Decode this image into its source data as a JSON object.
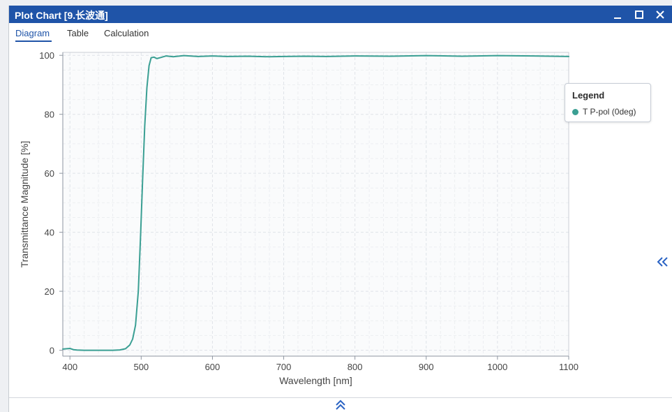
{
  "window": {
    "title": "Plot Chart [9.长波通]"
  },
  "tabs": [
    {
      "label": "Diagram",
      "active": true
    },
    {
      "label": "Table",
      "active": false
    },
    {
      "label": "Calculation",
      "active": false
    }
  ],
  "chart_data": {
    "type": "line",
    "title": "",
    "xlabel": "Wavelength [nm]",
    "ylabel": "Transmittance Magnitude [%]",
    "xlim": [
      390,
      1100
    ],
    "ylim": [
      -2,
      101
    ],
    "x_ticks": [
      400,
      500,
      600,
      700,
      800,
      900,
      1000,
      1100
    ],
    "y_ticks": [
      0,
      20,
      40,
      60,
      80,
      100
    ],
    "grid": true,
    "legend": {
      "title": "Legend",
      "placement": "top-right"
    },
    "series": [
      {
        "name": "T P-pol (0deg)",
        "color": "#3a9f93",
        "x": [
          390,
          400,
          405,
          410,
          420,
          440,
          460,
          470,
          478,
          484,
          488,
          492,
          496,
          499,
          502,
          505,
          508,
          511,
          514,
          518,
          522,
          528,
          535,
          545,
          560,
          580,
          600,
          620,
          650,
          680,
          700,
          730,
          760,
          800,
          850,
          900,
          950,
          1000,
          1050,
          1100
        ],
        "y": [
          0.4,
          0.6,
          0.2,
          0.05,
          0.0,
          0.0,
          0.0,
          0.1,
          0.5,
          1.8,
          3.8,
          8.5,
          20.0,
          38.0,
          58.0,
          76.0,
          89.0,
          96.5,
          99.2,
          99.4,
          98.9,
          99.3,
          99.8,
          99.5,
          99.9,
          99.6,
          99.8,
          99.6,
          99.7,
          99.5,
          99.6,
          99.7,
          99.6,
          99.8,
          99.7,
          99.9,
          99.7,
          99.9,
          99.8,
          99.6
        ]
      }
    ]
  },
  "icons": {
    "minimize": "minimize-icon",
    "maximize": "maximize-icon",
    "close": "close-icon",
    "collapse_side": "double-chevron-left-icon",
    "expand_bottom": "double-chevron-up-icon"
  },
  "colors": {
    "titlebar": "#1f54a8",
    "accent": "#1f54a8",
    "series": "#3a9f93"
  }
}
